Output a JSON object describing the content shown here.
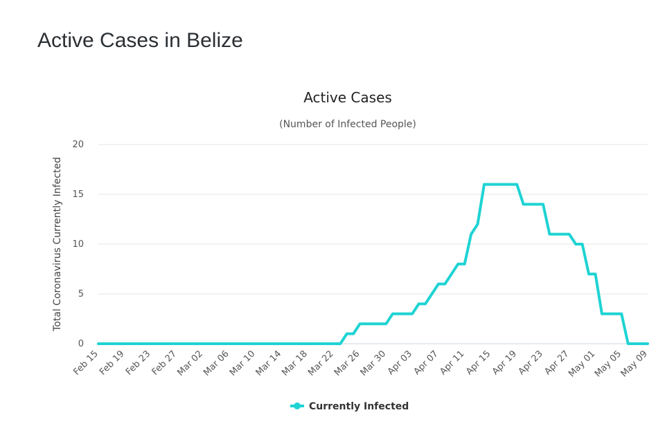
{
  "page": {
    "title": "Active Cases in Belize"
  },
  "chart_data": {
    "type": "line",
    "title": "Active Cases",
    "subtitle": "(Number of Infected People)",
    "ylabel": "Total Coronavirus Currently Infected",
    "xlabel": "",
    "ylim": [
      0,
      20
    ],
    "yticks": [
      0,
      5,
      10,
      15,
      20
    ],
    "grid": true,
    "legend_position": "bottom-center",
    "line_color": "#1fd3d3",
    "xtick_labels": [
      "Feb 15",
      "Feb 19",
      "Feb 23",
      "Feb 27",
      "Mar 02",
      "Mar 06",
      "Mar 10",
      "Mar 14",
      "Mar 18",
      "Mar 22",
      "Mar 26",
      "Mar 30",
      "Apr 03",
      "Apr 07",
      "Apr 11",
      "Apr 15",
      "Apr 19",
      "Apr 23",
      "Apr 27",
      "May 01",
      "May 05",
      "May 09"
    ],
    "series": [
      {
        "name": "Currently Infected",
        "points": [
          [
            "Feb 15",
            0
          ],
          [
            "Mar 22",
            0
          ],
          [
            "Mar 23",
            0
          ],
          [
            "Mar 24",
            1
          ],
          [
            "Mar 25",
            1
          ],
          [
            "Mar 26",
            2
          ],
          [
            "Mar 27",
            2
          ],
          [
            "Mar 28",
            2
          ],
          [
            "Mar 29",
            2
          ],
          [
            "Mar 30",
            2
          ],
          [
            "Mar 31",
            3
          ],
          [
            "Apr 01",
            3
          ],
          [
            "Apr 02",
            3
          ],
          [
            "Apr 03",
            3
          ],
          [
            "Apr 04",
            4
          ],
          [
            "Apr 05",
            4
          ],
          [
            "Apr 06",
            5
          ],
          [
            "Apr 07",
            6
          ],
          [
            "Apr 08",
            6
          ],
          [
            "Apr 09",
            7
          ],
          [
            "Apr 10",
            8
          ],
          [
            "Apr 11",
            8
          ],
          [
            "Apr 12",
            11
          ],
          [
            "Apr 13",
            12
          ],
          [
            "Apr 14",
            16
          ],
          [
            "Apr 15",
            16
          ],
          [
            "Apr 16",
            16
          ],
          [
            "Apr 17",
            16
          ],
          [
            "Apr 18",
            16
          ],
          [
            "Apr 19",
            16
          ],
          [
            "Apr 20",
            14
          ],
          [
            "Apr 21",
            14
          ],
          [
            "Apr 22",
            14
          ],
          [
            "Apr 23",
            14
          ],
          [
            "Apr 24",
            11
          ],
          [
            "Apr 25",
            11
          ],
          [
            "Apr 26",
            11
          ],
          [
            "Apr 27",
            11
          ],
          [
            "Apr 28",
            10
          ],
          [
            "Apr 29",
            10
          ],
          [
            "Apr 30",
            7
          ],
          [
            "May 01",
            7
          ],
          [
            "May 02",
            3
          ],
          [
            "May 03",
            3
          ],
          [
            "May 04",
            3
          ],
          [
            "May 05",
            3
          ],
          [
            "May 06",
            0
          ],
          [
            "May 07",
            0
          ],
          [
            "May 08",
            0
          ],
          [
            "May 09",
            0
          ]
        ]
      }
    ]
  }
}
